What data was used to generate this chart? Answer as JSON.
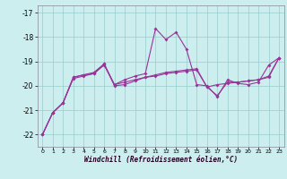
{
  "background_color": "#cceeee",
  "grid_color": "#99cccc",
  "line_color": "#993399",
  "xlabel": "Windchill (Refroidissement éolien,°C)",
  "xlim": [
    -0.5,
    23.5
  ],
  "ylim": [
    -22.5,
    -16.7
  ],
  "yticks": [
    -22,
    -21,
    -20,
    -19,
    -18,
    -17
  ],
  "xticks": [
    0,
    1,
    2,
    3,
    4,
    5,
    6,
    7,
    8,
    9,
    10,
    11,
    12,
    13,
    14,
    15,
    16,
    17,
    18,
    19,
    20,
    21,
    22,
    23
  ],
  "x": [
    0,
    1,
    2,
    3,
    4,
    5,
    6,
    7,
    8,
    9,
    10,
    11,
    12,
    13,
    14,
    15,
    16,
    17,
    18,
    19,
    20,
    21,
    22,
    23
  ],
  "line_spiky": [
    -22.0,
    -21.1,
    -20.7,
    -19.65,
    -19.55,
    -19.45,
    -19.1,
    -19.95,
    -19.75,
    -19.6,
    -19.5,
    -17.65,
    -18.1,
    -17.8,
    -18.5,
    -19.95,
    -20.0,
    -20.45,
    -19.75,
    -19.9,
    -19.95,
    -19.85,
    -19.15,
    -18.85
  ],
  "line_mid": [
    -22.0,
    -21.1,
    -20.7,
    -19.65,
    -19.55,
    -19.5,
    -19.1,
    -20.0,
    -19.95,
    -19.8,
    -19.65,
    -19.55,
    -19.45,
    -19.4,
    -19.35,
    -19.3,
    -20.05,
    -20.4,
    -19.85,
    -19.85,
    -19.8,
    -19.75,
    -19.6,
    -18.85
  ],
  "line_smooth": [
    -22.0,
    -21.1,
    -20.7,
    -19.7,
    -19.6,
    -19.5,
    -19.15,
    -19.95,
    -19.85,
    -19.75,
    -19.65,
    -19.6,
    -19.5,
    -19.45,
    -19.4,
    -19.35,
    -20.05,
    -19.95,
    -19.9,
    -19.85,
    -19.8,
    -19.75,
    -19.65,
    -18.85
  ]
}
